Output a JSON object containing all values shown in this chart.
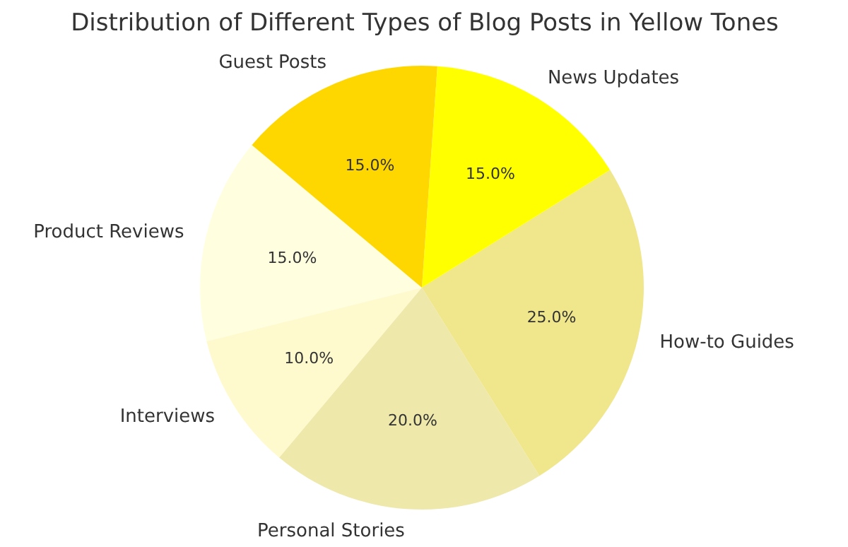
{
  "chart_data": {
    "type": "pie",
    "title": "Distribution of Different Types of Blog Posts in Yellow Tones",
    "categories": [
      "Product Reviews",
      "Interviews",
      "Personal Stories",
      "How-to Guides",
      "News Updates",
      "Guest Posts"
    ],
    "values": [
      15,
      10,
      20,
      25,
      15,
      15
    ],
    "colors": [
      "#ffffe0",
      "#fffacd",
      "#eee8aa",
      "#f0e68c",
      "#ffff00",
      "#ffd700"
    ],
    "value_labels": [
      "15.0%",
      "10.0%",
      "20.0%",
      "25.0%",
      "15.0%",
      "15.0%"
    ],
    "legend": false
  }
}
